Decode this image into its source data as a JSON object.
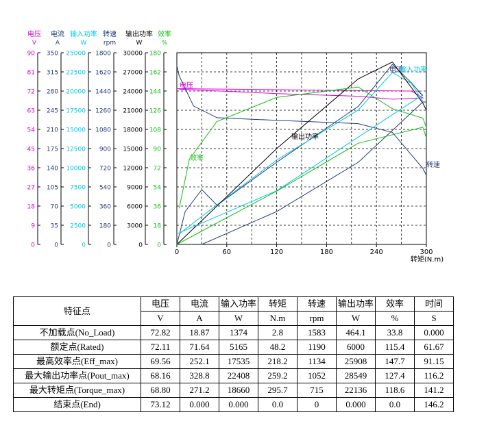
{
  "chart_data": {
    "type": "line",
    "xlabel": "转矩(N.m)",
    "x_ticks": [
      "0",
      "60",
      "120",
      "180",
      "240",
      "300"
    ],
    "xlim": [
      0,
      300
    ],
    "axes": [
      {
        "name": "电压",
        "unit": "V",
        "color": "#e000e0",
        "ticks": [
          "0",
          "9",
          "18",
          "27",
          "36",
          "45",
          "54",
          "63",
          "72",
          "81",
          "90"
        ],
        "max": 90
      },
      {
        "name": "电流",
        "unit": "A",
        "color": "#223a7a",
        "ticks": [
          "0",
          "35",
          "70",
          "105",
          "140",
          "175",
          "210",
          "245",
          "280",
          "315",
          "350"
        ],
        "max": 350
      },
      {
        "name": "输入功率",
        "unit": "W",
        "color": "#00c8e8",
        "ticks": [
          "0",
          "2500",
          "5000",
          "7500",
          "10000",
          "12500",
          "15000",
          "17500",
          "20000",
          "22500",
          "25000"
        ],
        "max": 25000
      },
      {
        "name": "转速",
        "unit": "rpm",
        "color": "#223a7a",
        "ticks": [
          "0",
          "180",
          "360",
          "540",
          "720",
          "900",
          "1080",
          "1260",
          "1440",
          "1620",
          "1800"
        ],
        "max": 1800
      },
      {
        "name": "输出功率",
        "unit": "W",
        "color": "#000000",
        "ticks": [
          "0",
          "3000",
          "6000",
          "9000",
          "12000",
          "15000",
          "18000",
          "21000",
          "24000",
          "27000",
          "30000"
        ],
        "max": 30000
      },
      {
        "name": "效率",
        "unit": "%",
        "color": "#10c010",
        "ticks": [
          "0",
          "18",
          "36",
          "54",
          "72",
          "90",
          "108",
          "126",
          "144",
          "162",
          "180"
        ],
        "max": 180
      }
    ],
    "series": [
      {
        "name": "电压",
        "axis": 0,
        "color": "#e000e0",
        "x": [
          2.8,
          48.2,
          120,
          218.2,
          259.2,
          295.7,
          282,
          0
        ],
        "y": [
          72.82,
          72.11,
          70.8,
          69.56,
          68.16,
          68.8,
          72,
          73.12
        ]
      },
      {
        "name": "电流",
        "axis": 1,
        "color": "#223a7a",
        "x": [
          0,
          10,
          30,
          48.2,
          120,
          218.2,
          259.2,
          282,
          295.7,
          290
        ],
        "y": [
          0,
          60,
          100,
          71.64,
          150,
          252.1,
          328.8,
          295,
          271.2,
          280
        ]
      },
      {
        "name": "输入功率",
        "axis": 2,
        "color": "#00c8e8",
        "x": [
          2.8,
          48.2,
          120,
          218.2,
          259.2,
          282,
          295.7
        ],
        "y": [
          1374,
          5165,
          11000,
          17535,
          22408,
          21000,
          18660
        ]
      },
      {
        "name": "转速",
        "axis": 3,
        "color": "#223a7a",
        "x": [
          0,
          2.8,
          20,
          48.2,
          120,
          218.2,
          259.2,
          295.7,
          300,
          295.7
        ],
        "y": [
          1680,
          1583,
          1300,
          1190,
          1165,
          1134,
          1052,
          715,
          650,
          715
        ]
      },
      {
        "name": "输出功率",
        "axis": 4,
        "color": "#000000",
        "x": [
          0,
          48.2,
          120,
          218.2,
          259.2,
          295.7,
          300
        ],
        "y": [
          0,
          6000,
          15000,
          25908,
          28549,
          22136,
          21000
        ]
      },
      {
        "name": "效率",
        "axis": 5,
        "color": "#10c010",
        "x": [
          2.8,
          15,
          48.2,
          120,
          218.2,
          259.2,
          295.7,
          300
        ],
        "y": [
          33.8,
          80,
          115.4,
          138,
          147.7,
          127.4,
          118.6,
          110
        ]
      },
      {
        "name": "电流b",
        "axis": 1,
        "color": "#223a7a",
        "x": [
          30,
          120,
          218.2,
          295.7,
          300
        ],
        "y": [
          0,
          60,
          150,
          260,
          260
        ]
      },
      {
        "name": "输入功率b",
        "axis": 2,
        "color": "#00c8e8",
        "x": [
          0,
          120,
          218.2,
          295.7
        ],
        "y": [
          1374,
          7000,
          14000,
          19500
        ]
      },
      {
        "name": "效率b",
        "axis": 5,
        "color": "#10c010",
        "x": [
          0,
          120,
          218.2,
          295.7,
          300
        ],
        "y": [
          0,
          50,
          95,
          110,
          100
        ]
      }
    ],
    "annotations": [
      {
        "text": "电压",
        "color": "#e000e0"
      },
      {
        "text": "电流",
        "color": "#223a7a"
      },
      {
        "text": "输入功率",
        "color": "#00c8e8"
      },
      {
        "text": "转速",
        "color": "#223a7a"
      },
      {
        "text": "输出功率",
        "color": "#000000"
      },
      {
        "text": "效率",
        "color": "#10c010"
      }
    ]
  },
  "table": {
    "header": {
      "label": "特征点",
      "names": [
        "电压",
        "电流",
        "输入功率",
        "转矩",
        "转速",
        "输出功率",
        "效率",
        "时间"
      ],
      "units": [
        "V",
        "A",
        "W",
        "N.m",
        "rpm",
        "W",
        "%",
        "S"
      ]
    },
    "rows": [
      {
        "label": "不加载点(No_Load)",
        "values": [
          "72.82",
          "18.87",
          "1374",
          "2.8",
          "1583",
          "464.1",
          "33.8",
          "0.000"
        ]
      },
      {
        "label": "额定点(Rated)",
        "values": [
          "72.11",
          "71.64",
          "5165",
          "48.2",
          "1190",
          "6000",
          "115.4",
          "61.67"
        ]
      },
      {
        "label": "最高效率点(Eff_max)",
        "values": [
          "69.56",
          "252.1",
          "17535",
          "218.2",
          "1134",
          "25908",
          "147.7",
          "91.15"
        ]
      },
      {
        "label": "最大输出功率点(Pout_max)",
        "values": [
          "68.16",
          "328.8",
          "22408",
          "259.2",
          "1052",
          "28549",
          "127.4",
          "116.2"
        ]
      },
      {
        "label": "最大转矩点(Torque_max)",
        "values": [
          "68.80",
          "271.2",
          "18660",
          "295.7",
          "715",
          "22136",
          "118.6",
          "141.2"
        ]
      },
      {
        "label": "结束点(End)",
        "values": [
          "73.12",
          "0.000",
          "0.000",
          "0.0",
          "0",
          "0.000",
          "0.0",
          "146.2"
        ]
      }
    ]
  }
}
